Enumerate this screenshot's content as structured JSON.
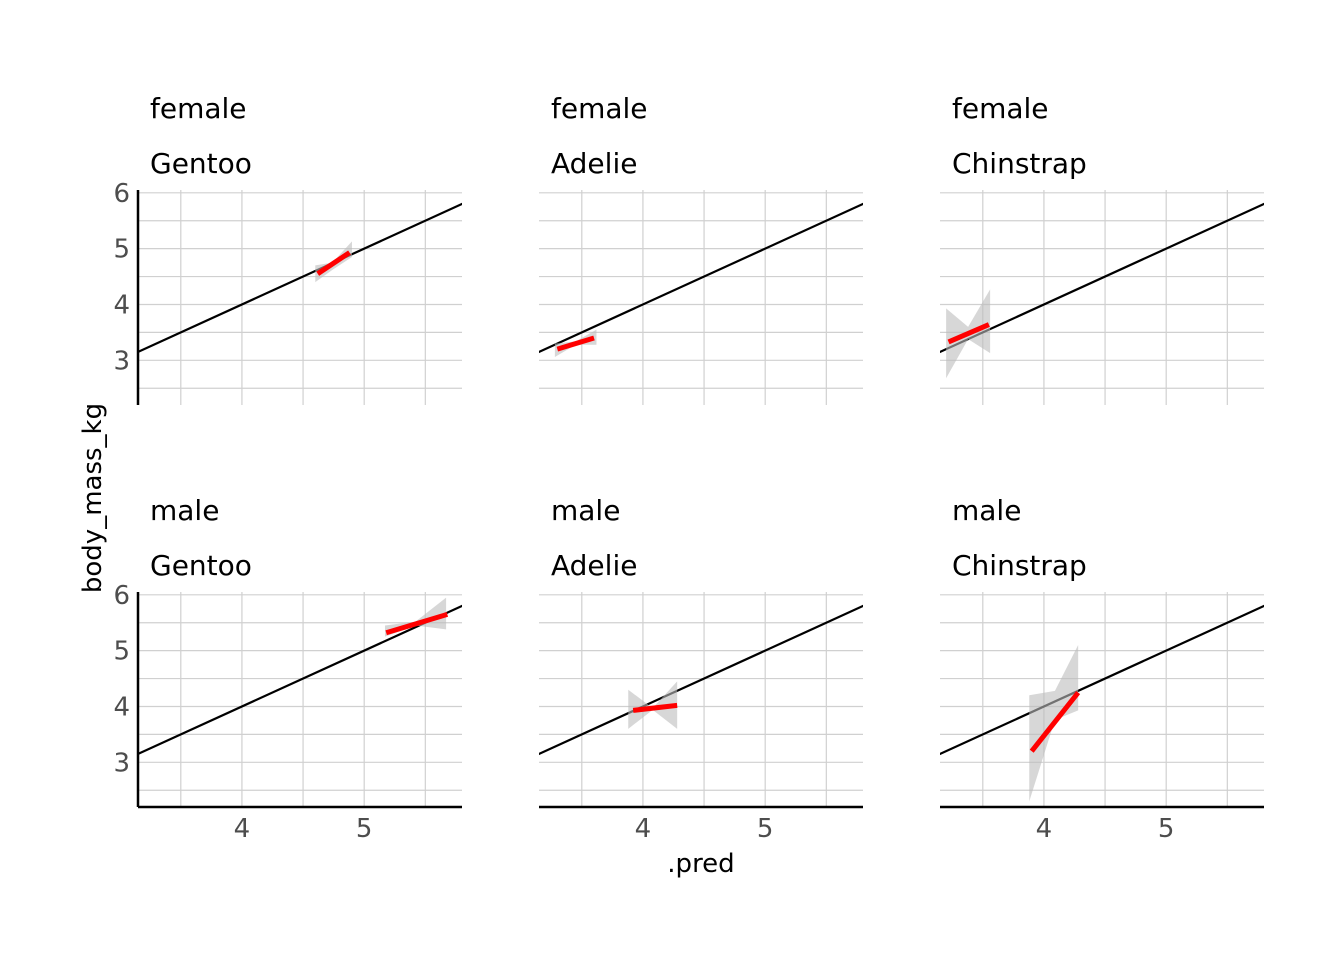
{
  "chart_data": {
    "type": "line",
    "xlabel": ".pred",
    "ylabel": "body_mass_kg",
    "xlim": [
      3.15,
      5.8
    ],
    "ylim": [
      2.2,
      6.05
    ],
    "x_ticks": [
      4,
      5
    ],
    "x_minor_ticks": [
      3.5,
      4.5,
      5.5
    ],
    "y_ticks": [
      3,
      4,
      5,
      6
    ],
    "y_minor_ticks": [
      2.5,
      3.5,
      4.5,
      5.5
    ],
    "grid": true,
    "reference_line": {
      "slope": 1,
      "intercept": 0,
      "color": "#000000"
    },
    "fit_color": "#ff0000",
    "ribbon_color": "#bdbdbd",
    "panels": [
      {
        "sex": "female",
        "species": "Gentoo",
        "fit": {
          "x": [
            4.62,
            4.88
          ],
          "y": [
            4.55,
            4.93
          ]
        },
        "ribbon": {
          "x": [
            4.6,
            4.74,
            4.9
          ],
          "lower": [
            4.4,
            4.62,
            4.85
          ],
          "upper": [
            4.7,
            4.75,
            5.13
          ]
        }
      },
      {
        "sex": "female",
        "species": "Adelie",
        "fit": {
          "x": [
            3.3,
            3.6
          ],
          "y": [
            3.2,
            3.4
          ]
        },
        "ribbon": {
          "x": [
            3.28,
            3.45,
            3.62
          ],
          "lower": [
            3.06,
            3.28,
            3.28
          ],
          "upper": [
            3.3,
            3.34,
            3.55
          ]
        }
      },
      {
        "sex": "female",
        "species": "Chinstrap",
        "fit": {
          "x": [
            3.22,
            3.55
          ],
          "y": [
            3.33,
            3.64
          ]
        },
        "ribbon": {
          "x": [
            3.2,
            3.38,
            3.56
          ],
          "lower": [
            2.68,
            3.38,
            3.13
          ],
          "upper": [
            3.93,
            3.6,
            4.27
          ]
        }
      },
      {
        "sex": "male",
        "species": "Gentoo",
        "fit": {
          "x": [
            5.18,
            5.68
          ],
          "y": [
            5.32,
            5.65
          ]
        },
        "ribbon": {
          "x": [
            5.17,
            5.42,
            5.67
          ],
          "lower": [
            5.25,
            5.45,
            5.38
          ],
          "upper": [
            5.45,
            5.52,
            5.95
          ]
        }
      },
      {
        "sex": "male",
        "species": "Adelie",
        "fit": {
          "x": [
            3.92,
            4.28
          ],
          "y": [
            3.93,
            4.02
          ]
        },
        "ribbon": {
          "x": [
            3.88,
            4.08,
            4.28
          ],
          "lower": [
            3.6,
            3.94,
            3.6
          ],
          "upper": [
            4.3,
            3.97,
            4.45
          ]
        }
      },
      {
        "sex": "male",
        "species": "Chinstrap",
        "fit": {
          "x": [
            3.9,
            4.28
          ],
          "y": [
            3.2,
            4.25
          ]
        },
        "ribbon": {
          "x": [
            3.88,
            4.09,
            4.28
          ],
          "lower": [
            2.3,
            3.76,
            3.93
          ],
          "upper": [
            4.2,
            4.28,
            5.1
          ]
        }
      }
    ]
  }
}
